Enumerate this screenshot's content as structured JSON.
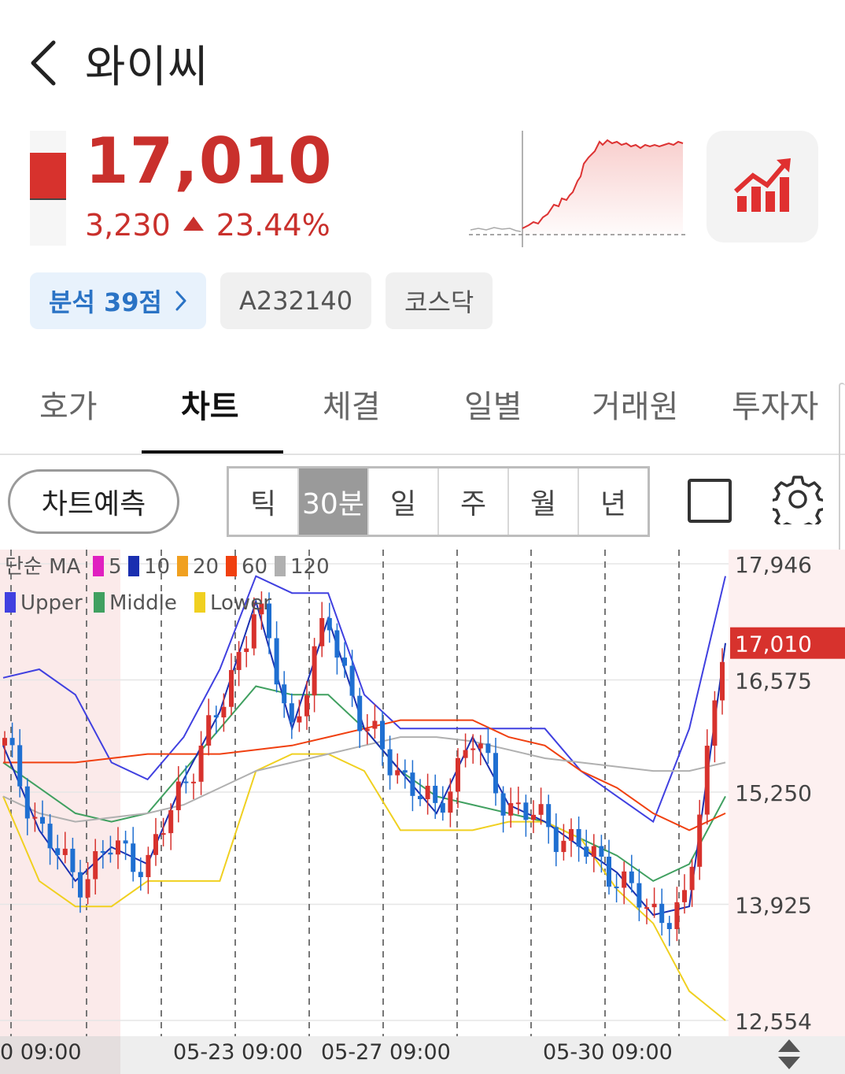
{
  "header": {
    "title": "와이씨"
  },
  "quote": {
    "price": "17,010",
    "change": "3,230",
    "change_pct": "23.44%",
    "direction": "up",
    "accent_color": "#c9302c"
  },
  "tags": {
    "analysis": "분석 39점",
    "code": "A232140",
    "market": "코스닥"
  },
  "tabs": [
    {
      "label": "호가"
    },
    {
      "label": "차트",
      "active": true
    },
    {
      "label": "체결"
    },
    {
      "label": "일별"
    },
    {
      "label": "거래원"
    },
    {
      "label": "투자자"
    }
  ],
  "toolbar": {
    "predict_label": "차트예측",
    "periods": [
      {
        "label": "틱"
      },
      {
        "label": "30분",
        "active": true
      },
      {
        "label": "일"
      },
      {
        "label": "주"
      },
      {
        "label": "월"
      },
      {
        "label": "년"
      }
    ],
    "icons": [
      "checkbox-icon",
      "gear-icon"
    ]
  },
  "chart": {
    "legend_ma": {
      "label": "단순 MA",
      "items": [
        {
          "label": "5",
          "color": "#e020c0"
        },
        {
          "label": "10",
          "color": "#1a2fb0"
        },
        {
          "label": "20",
          "color": "#f0a020"
        },
        {
          "label": "60",
          "color": "#f04010"
        },
        {
          "label": "120",
          "color": "#b0b0b0"
        }
      ]
    },
    "legend_bb": {
      "items": [
        {
          "label": "Upper",
          "color": "#4040e0"
        },
        {
          "label": "Middle",
          "color": "#40a060"
        },
        {
          "label": "Lower",
          "color": "#f0d020"
        }
      ]
    },
    "y_ticks": [
      "17,946",
      "16,575",
      "15,250",
      "13,925",
      "12,554"
    ],
    "current_price_label": "17,010",
    "x_labels": [
      "0 09:00",
      "05-23 09:00",
      "05-27 09:00",
      "05-30 09:00"
    ]
  },
  "chart_data": {
    "type": "line",
    "title": "",
    "ylim": [
      12554,
      17946
    ],
    "series": [
      {
        "name": "Upper",
        "values": [
          16600,
          16700,
          16400,
          15600,
          15400,
          15900,
          16700,
          17800,
          17600,
          17600,
          16400,
          16000,
          16000,
          16000,
          16000,
          16000,
          15500,
          15200,
          14900,
          16000,
          17800
        ]
      },
      {
        "name": "Middle",
        "values": [
          15600,
          15300,
          15000,
          14900,
          15000,
          15500,
          16000,
          16500,
          16400,
          16400,
          16000,
          15500,
          15200,
          15100,
          15000,
          14900,
          14700,
          14500,
          14200,
          14400,
          15200
        ]
      },
      {
        "name": "Lower",
        "values": [
          15200,
          14200,
          13900,
          13900,
          14200,
          14200,
          14200,
          15500,
          15700,
          15700,
          15500,
          14800,
          14800,
          14800,
          14900,
          14900,
          14700,
          14100,
          13700,
          12900,
          12554
        ]
      },
      {
        "name": "60",
        "values": [
          15600,
          15600,
          15600,
          15650,
          15700,
          15700,
          15700,
          15750,
          15800,
          15900,
          16000,
          16100,
          16100,
          16100,
          15900,
          15800,
          15500,
          15300,
          15000,
          14800,
          15000
        ]
      },
      {
        "name": "120",
        "values": [
          15200,
          15000,
          14900,
          14950,
          15000,
          15100,
          15300,
          15500,
          15600,
          15700,
          15800,
          15900,
          15900,
          15850,
          15750,
          15650,
          15600,
          15550,
          15500,
          15500,
          15600
        ]
      },
      {
        "name": "Price",
        "values": [
          15800,
          14800,
          14200,
          14600,
          14400,
          15400,
          16200,
          17500,
          16000,
          17300,
          16000,
          15500,
          15000,
          15900,
          15100,
          14900,
          14600,
          14300,
          13800,
          13900,
          17010
        ]
      }
    ]
  }
}
